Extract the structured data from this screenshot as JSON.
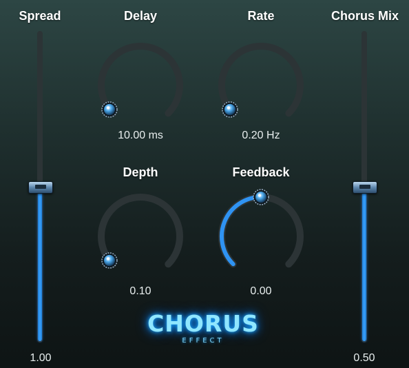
{
  "spread": {
    "label": "Spread",
    "value": "1.00",
    "level": 0.5
  },
  "delay": {
    "label": "Delay",
    "value": "10.00 ms",
    "level": 0.0
  },
  "rate": {
    "label": "Rate",
    "value": "0.20 Hz",
    "level": 0.0
  },
  "depth": {
    "label": "Depth",
    "value": "0.10",
    "level": 0.0
  },
  "feedback": {
    "label": "Feedback",
    "value": "0.00",
    "level": 0.5
  },
  "chorus_mix": {
    "label": "Chorus Mix",
    "value": "0.50",
    "level": 0.5
  },
  "logo": {
    "title": "CHORUS",
    "subtitle": "EFFECT"
  },
  "colors": {
    "accent": "#2f93f2",
    "track": "#2c3436",
    "glow": "#1aa8ff"
  }
}
